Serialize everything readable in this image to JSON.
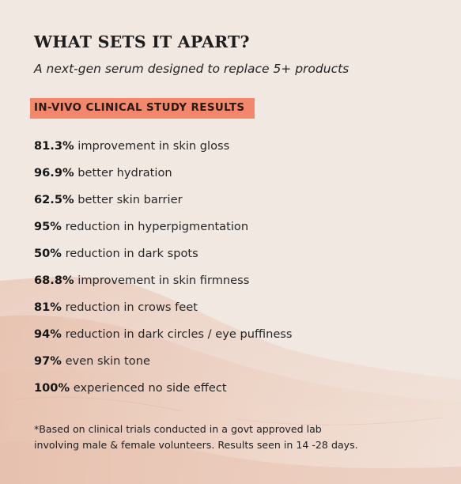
{
  "heading": {
    "title": "WHAT SETS IT APART?",
    "subtitle": "A next-gen serum designed to replace 5+ products"
  },
  "badge": {
    "label": "IN-VIVO CLINICAL STUDY RESULTS",
    "color": "#f2876c"
  },
  "results": [
    {
      "value": "81.3%",
      "text": " improvement in skin gloss"
    },
    {
      "value": "96.9%",
      "text": " better hydration"
    },
    {
      "value": "62.5%",
      "text": " better skin barrier"
    },
    {
      "value": "95%",
      "text": " reduction in hyperpigmentation"
    },
    {
      "value": "50%",
      "text": " reduction in dark spots"
    },
    {
      "value": "68.8%",
      "text": " improvement in skin firmness"
    },
    {
      "value": "81%",
      "text": " reduction in crows feet"
    },
    {
      "value": "94%",
      "text": " reduction in dark circles / eye puffiness"
    },
    {
      "value": "97%",
      "text": " even skin tone"
    },
    {
      "value": "100%",
      "text": " experienced no side effect"
    }
  ],
  "footnote": {
    "line1": "*Based on clinical trials conducted in a govt approved lab",
    "line2": "involving male & female volunteers. Results seen in 14 -28 days."
  },
  "colors": {
    "background": "#f0e6e0",
    "wash": "#e8c3b2"
  }
}
